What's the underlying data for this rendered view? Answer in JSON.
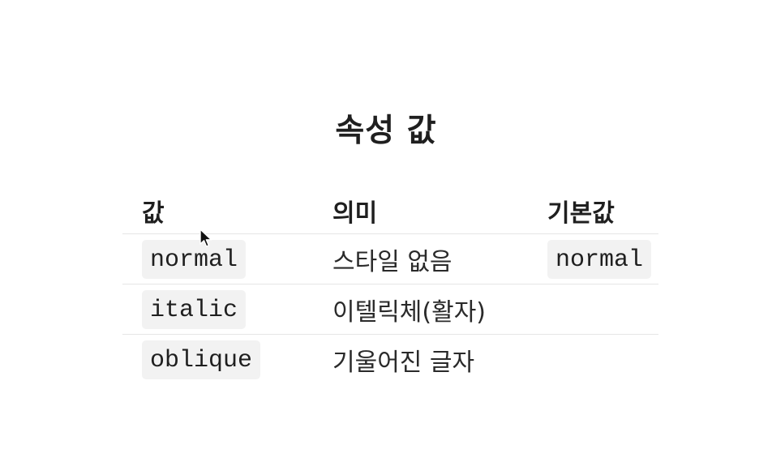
{
  "title": "속성 값",
  "table": {
    "headers": {
      "value": "값",
      "meaning": "의미",
      "default": "기본값"
    },
    "rows": [
      {
        "value": "normal",
        "meaning": "스타일 없음",
        "default": "normal"
      },
      {
        "value": "italic",
        "meaning": "이텔릭체(활자)",
        "default": ""
      },
      {
        "value": "oblique",
        "meaning": "기울어진 글자",
        "default": ""
      }
    ]
  },
  "icons": {
    "cursor": "mouse-pointer-icon"
  },
  "colors": {
    "text": "#1f1f1f",
    "code_background": "#f2f2f2",
    "row_divider": "#e6e6e6"
  }
}
